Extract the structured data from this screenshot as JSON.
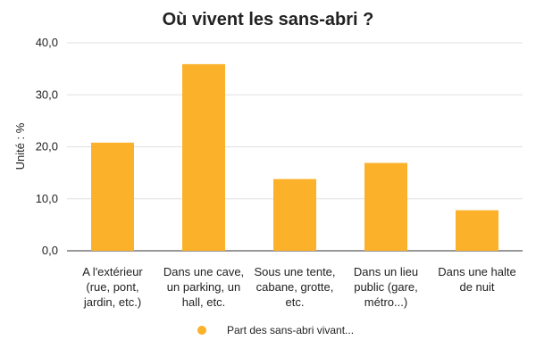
{
  "chart_data": {
    "type": "bar",
    "title": "Où vivent les sans-abri ?",
    "xlabel": "",
    "ylabel": "Unité : %",
    "ylim": [
      0,
      40
    ],
    "yticks": [
      0,
      10,
      20,
      30,
      40
    ],
    "ytick_labels": [
      "0,0",
      "10,0",
      "20,0",
      "30,0",
      "40,0"
    ],
    "categories": [
      [
        "A l'extérieur",
        "(rue, pont,",
        "jardin, etc.)"
      ],
      [
        "Dans une cave,",
        "un parking, un",
        "hall, etc."
      ],
      [
        "Sous une tente,",
        "cabane, grotte,",
        "etc."
      ],
      [
        "Dans un lieu",
        "public (gare,",
        "métro...)"
      ],
      [
        "Dans une halte",
        "de nuit"
      ]
    ],
    "series": [
      {
        "name": "Part des sans-abri vivant...",
        "values": [
          20.8,
          35.9,
          13.8,
          16.9,
          7.8
        ],
        "color": "#FBB12A"
      }
    ],
    "grid": true,
    "legend_position": "bottom"
  }
}
